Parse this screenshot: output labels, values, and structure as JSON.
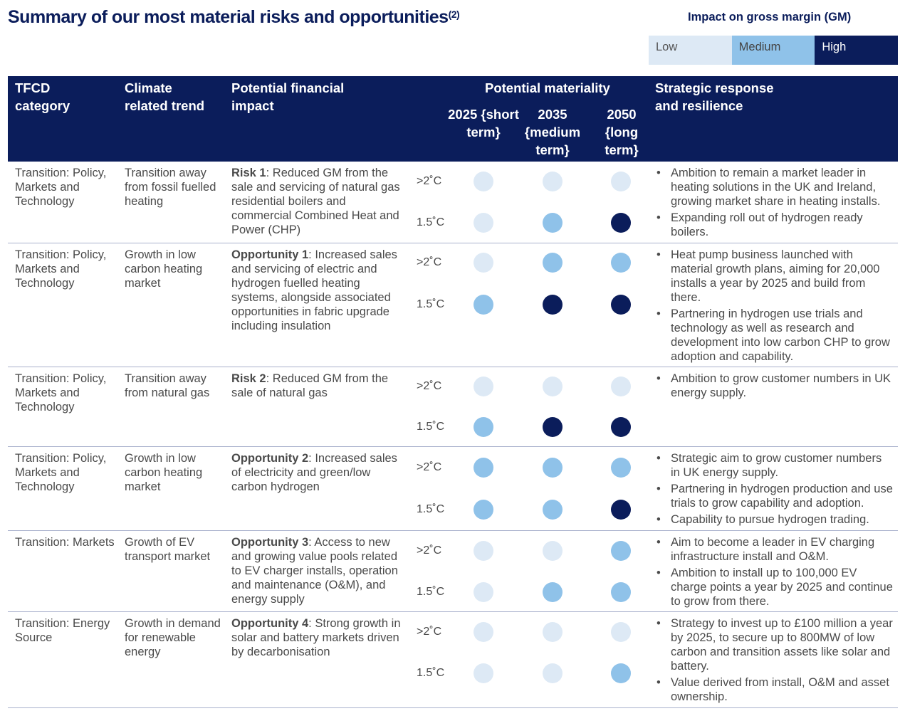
{
  "title": "Summary of our most material risks and opportunities",
  "title_sup": "(2)",
  "legend": {
    "title": "Impact on gross margin (GM)",
    "levels": [
      {
        "label": "Low",
        "color": "#dde9f5"
      },
      {
        "label": "Medium",
        "color": "#8fc2e9"
      },
      {
        "label": "High",
        "color": "#0b1d5b"
      }
    ]
  },
  "header": {
    "category": "TFCD category",
    "trend": "Climate related trend",
    "impact": "Potential financial impact",
    "materiality": "Potential materiality",
    "years": [
      "2025 {short term}",
      "2035 {medium term}",
      "2050 {long term}"
    ],
    "strategy": "Strategic response and resilience"
  },
  "scenarios": [
    ">2˚C",
    "1.5˚C"
  ],
  "rows": [
    {
      "category": "Transition: Policy, Markets and Technology",
      "trend": "Transition away from fossil fuelled heating",
      "impact_label": "Risk 1",
      "impact_text": ": Reduced GM from the sale and servicing of natural gas residential boilers and commercial Combined Heat and Power (CHP)",
      "materiality": [
        [
          "Low",
          "Low",
          "Low"
        ],
        [
          "Low",
          "Medium",
          "High"
        ]
      ],
      "strategy": [
        "Ambition to remain a market leader in heating solutions in the UK and Ireland, growing market share in heating installs.",
        "Expanding roll out of hydrogen ready boilers."
      ]
    },
    {
      "category": "Transition: Policy, Markets and Technology",
      "trend": "Growth in low carbon heating market",
      "impact_label": "Opportunity 1",
      "impact_text": ": Increased sales and servicing of electric and hydrogen fuelled heating systems, alongside associated opportunities in fabric upgrade including insulation",
      "materiality": [
        [
          "Low",
          "Medium",
          "Medium"
        ],
        [
          "Medium",
          "High",
          "High"
        ]
      ],
      "strategy": [
        "Heat pump business launched with material growth plans, aiming for 20,000 installs a year by 2025 and build from there.",
        "Partnering in hydrogen use trials and technology as well as research and development into low carbon CHP to grow adoption and capability."
      ]
    },
    {
      "category": "Transition: Policy, Markets and Technology",
      "trend": "Transition away from natural gas",
      "impact_label": "Risk 2",
      "impact_text": ": Reduced GM from the sale of natural gas",
      "materiality": [
        [
          "Low",
          "Low",
          "Low"
        ],
        [
          "Medium",
          "High",
          "High"
        ]
      ],
      "strategy": [
        "Ambition to grow customer numbers in UK energy supply."
      ]
    },
    {
      "category": "Transition: Policy, Markets and Technology",
      "trend": "Growth in low carbon heating market",
      "impact_label": "Opportunity 2",
      "impact_text": ": Increased sales of electricity and green/low carbon hydrogen",
      "materiality": [
        [
          "Medium",
          "Medium",
          "Medium"
        ],
        [
          "Medium",
          "Medium",
          "High"
        ]
      ],
      "strategy": [
        "Strategic aim to grow customer numbers in UK energy supply.",
        "Partnering in hydrogen production and use trials to grow capability and adoption.",
        "Capability to pursue hydrogen trading."
      ]
    },
    {
      "category": "Transition: Markets",
      "trend": "Growth of EV transport market",
      "impact_label": "Opportunity 3",
      "impact_text": ": Access to new and growing value pools related to EV charger installs, operation and maintenance (O&M), and energy supply",
      "materiality": [
        [
          "Low",
          "Low",
          "Medium"
        ],
        [
          "Low",
          "Medium",
          "Medium"
        ]
      ],
      "strategy": [
        "Aim to become a leader in EV charging infrastructure install and O&M.",
        "Ambition to install up to 100,000 EV charge points a year by 2025 and continue to grow from there."
      ]
    },
    {
      "category": "Transition: Energy Source",
      "trend": "Growth in demand for renewable energy",
      "impact_label": "Opportunity 4",
      "impact_text": ": Strong growth in solar and battery markets driven by decarbonisation",
      "materiality": [
        [
          "Low",
          "Low",
          "Low"
        ],
        [
          "Low",
          "Low",
          "Medium"
        ]
      ],
      "strategy": [
        "Strategy to invest up to £100 million a year by 2025, to secure up to 800MW of low carbon and transition assets like solar and battery.",
        "Value derived from install, O&M and asset ownership."
      ]
    }
  ]
}
